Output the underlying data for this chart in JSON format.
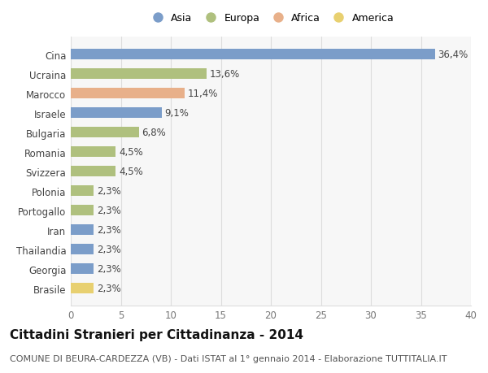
{
  "categories": [
    "Brasile",
    "Georgia",
    "Thailandia",
    "Iran",
    "Portogallo",
    "Polonia",
    "Svizzera",
    "Romania",
    "Bulgaria",
    "Israele",
    "Marocco",
    "Ucraina",
    "Cina"
  ],
  "values": [
    2.3,
    2.3,
    2.3,
    2.3,
    2.3,
    2.3,
    4.5,
    4.5,
    6.8,
    9.1,
    11.4,
    13.6,
    36.4
  ],
  "labels": [
    "2,3%",
    "2,3%",
    "2,3%",
    "2,3%",
    "2,3%",
    "2,3%",
    "4,5%",
    "4,5%",
    "6,8%",
    "9,1%",
    "11,4%",
    "13,6%",
    "36,4%"
  ],
  "continents": [
    "America",
    "Asia",
    "Asia",
    "Asia",
    "Europa",
    "Europa",
    "Europa",
    "Europa",
    "Europa",
    "Asia",
    "Africa",
    "Europa",
    "Asia"
  ],
  "continent_colors": {
    "Asia": "#7b9dc9",
    "Europa": "#afc07e",
    "Africa": "#e8b08a",
    "America": "#e8d070"
  },
  "legend_order": [
    "Asia",
    "Europa",
    "Africa",
    "America"
  ],
  "legend_colors": {
    "Asia": "#7b9dc9",
    "Europa": "#afc07e",
    "Africa": "#e8b08a",
    "America": "#e8d070"
  },
  "title": "Cittadini Stranieri per Cittadinanza - 2014",
  "subtitle": "COMUNE DI BEURA-CARDEZZA (VB) - Dati ISTAT al 1° gennaio 2014 - Elaborazione TUTTITALIA.IT",
  "xlim": [
    0,
    40
  ],
  "xticks": [
    0,
    5,
    10,
    15,
    20,
    25,
    30,
    35,
    40
  ],
  "background_color": "#ffffff",
  "plot_bg_color": "#f7f7f7",
  "bar_height": 0.55,
  "label_fontsize": 8.5,
  "title_fontsize": 11,
  "subtitle_fontsize": 8,
  "ytick_fontsize": 8.5,
  "grid_color": "#dddddd"
}
